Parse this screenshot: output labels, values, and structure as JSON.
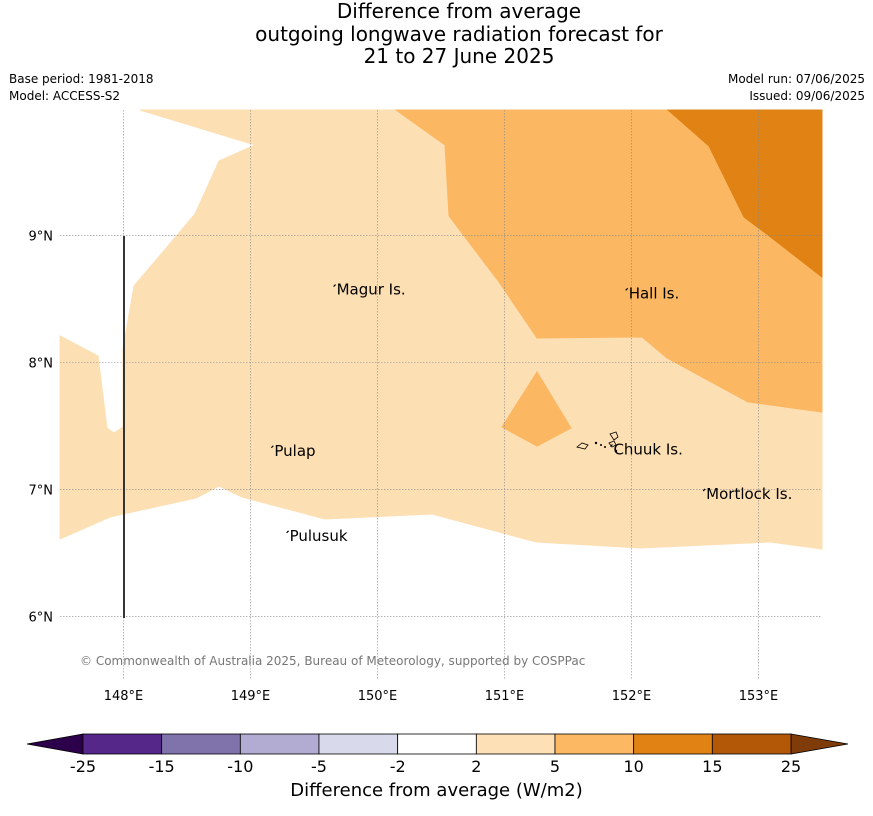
{
  "title_lines": [
    "Difference from average",
    "outgoing longwave radiation forecast for",
    "21 to 27 June 2025"
  ],
  "meta": {
    "base_period": "Base period: 1981-2018",
    "model": "Model: ACCESS-S2",
    "model_run": "Model run: 07/06/2025",
    "issued": "Issued: 09/06/2025"
  },
  "map": {
    "lon_range": [
      147.5,
      153.5
    ],
    "lat_range": [
      5.5,
      9.99
    ],
    "lon_ticks": [
      148,
      149,
      150,
      151,
      152,
      153
    ],
    "lon_tick_labels": [
      "148°E",
      "149°E",
      "150°E",
      "151°E",
      "152°E",
      "153°E"
    ],
    "lat_ticks": [
      6,
      7,
      8,
      9
    ],
    "lat_tick_labels": [
      "6°N",
      "7°N",
      "8°N",
      "9°N"
    ],
    "grid": true,
    "places": [
      {
        "name": "Magur Is.",
        "lon": 149.67,
        "lat": 8.56
      },
      {
        "name": "Hall Is.",
        "lon": 151.97,
        "lat": 8.53
      },
      {
        "name": "Pulap",
        "lon": 149.18,
        "lat": 7.29
      },
      {
        "name": "Chuuk Is.",
        "lon": 151.85,
        "lat": 7.3
      },
      {
        "name": "Mortlock Is.",
        "lon": 152.58,
        "lat": 6.95
      },
      {
        "name": "Pulusuk",
        "lon": 149.3,
        "lat": 6.62
      }
    ],
    "copyright": "© Commonwealth of Australia 2025, Bureau of Meteorology, supported by COSPPac"
  },
  "colors": {
    "band_2_5": "#fddfb4",
    "band_5_10": "#fbb762",
    "band_10_15": "#e08214",
    "grid": "#888888",
    "boundary": "#222222"
  },
  "colorbar": {
    "label": "Difference from average (W/m2)",
    "ticks": [
      "-25",
      "-15",
      "-10",
      "-5",
      "-2",
      "2",
      "5",
      "10",
      "15",
      "25"
    ],
    "colors": [
      "#542788",
      "#8073ac",
      "#b2abd2",
      "#d8daeb",
      "#ffffff",
      "#fee0b6",
      "#fdb863",
      "#e08214",
      "#b35806"
    ],
    "low_extend_color": "#2d004b",
    "high_extend_color": "#7f3b08"
  }
}
